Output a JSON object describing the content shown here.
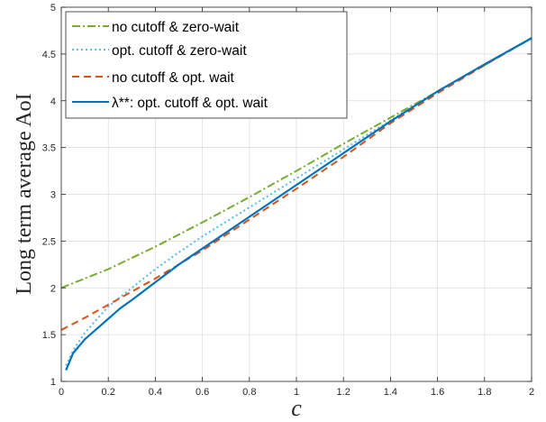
{
  "chart_data": {
    "type": "line",
    "title": "",
    "xlabel": "c",
    "ylabel": "Long term average AoI",
    "xlim": [
      0,
      2
    ],
    "ylim": [
      1,
      5
    ],
    "xticks": [
      "0",
      "0.2",
      "0.4",
      "0.6",
      "0.8",
      "1",
      "1.2",
      "1.4",
      "1.6",
      "1.8",
      "2"
    ],
    "yticks": [
      "1",
      "1.5",
      "2",
      "2.5",
      "3",
      "3.5",
      "4",
      "4.5",
      "5"
    ],
    "grid": true,
    "legend_position": "top-left",
    "series": [
      {
        "name": "no cutoff & zero-wait",
        "color": "#77AC30",
        "style": "dashdot",
        "x": [
          0,
          0.2,
          0.4,
          0.6,
          0.8,
          1.0,
          1.2,
          1.4,
          1.6,
          1.8,
          2.0
        ],
        "y": [
          2.0,
          2.2,
          2.44,
          2.7,
          2.97,
          3.25,
          3.54,
          3.82,
          4.1,
          4.38,
          4.67
        ]
      },
      {
        "name": "opt. cutoff & zero-wait",
        "color": "#4DBEEE",
        "style": "dotted",
        "x": [
          0.02,
          0.05,
          0.1,
          0.2,
          0.3,
          0.4,
          0.5,
          0.6,
          0.8,
          1.0,
          1.2,
          1.4,
          1.6,
          1.8,
          2.0
        ],
        "y": [
          1.17,
          1.33,
          1.52,
          1.8,
          2.0,
          2.2,
          2.38,
          2.55,
          2.86,
          3.17,
          3.48,
          3.79,
          4.1,
          4.39,
          4.67
        ]
      },
      {
        "name": "no cutoff & opt. wait",
        "color": "#D95319",
        "style": "dashed",
        "x": [
          0,
          0.1,
          0.2,
          0.3,
          0.4,
          0.5,
          0.6,
          0.8,
          1.0,
          1.2,
          1.4,
          1.6,
          1.8,
          2.0
        ],
        "y": [
          1.55,
          1.68,
          1.82,
          1.96,
          2.1,
          2.25,
          2.4,
          2.73,
          3.06,
          3.4,
          3.76,
          4.08,
          4.38,
          4.67
        ]
      },
      {
        "name": "λ**: opt. cutoff & opt. wait",
        "color": "#0072BD",
        "style": "solid",
        "x": [
          0.02,
          0.05,
          0.1,
          0.15,
          0.2,
          0.25,
          0.3,
          0.4,
          0.5,
          0.6,
          0.8,
          1.0,
          1.2,
          1.4,
          1.6,
          1.8,
          2.0
        ],
        "y": [
          1.12,
          1.3,
          1.45,
          1.56,
          1.67,
          1.78,
          1.87,
          2.06,
          2.25,
          2.42,
          2.76,
          3.1,
          3.44,
          3.78,
          4.1,
          4.39,
          4.67
        ]
      }
    ]
  }
}
